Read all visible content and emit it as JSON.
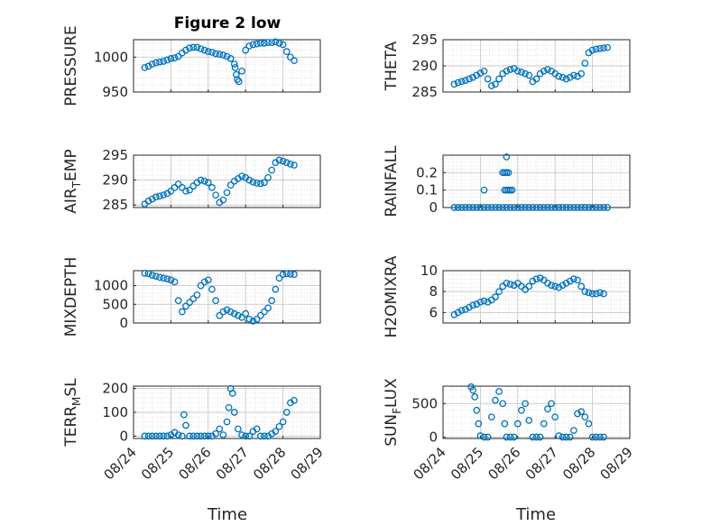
{
  "figure_title": "Figure 2 low",
  "chart_data": [
    {
      "type": "scatter",
      "ylabel": "PRESSURE",
      "ylim": [
        950,
        1025
      ],
      "yticks": [
        950,
        1000
      ],
      "xlim": [
        0,
        5
      ],
      "x": [
        0.3,
        0.4,
        0.5,
        0.6,
        0.7,
        0.8,
        0.9,
        1.0,
        1.1,
        1.2,
        1.3,
        1.4,
        1.5,
        1.6,
        1.7,
        1.8,
        1.9,
        2.0,
        2.1,
        2.2,
        2.3,
        2.4,
        2.5,
        2.6,
        2.7,
        2.72,
        2.75,
        2.78,
        2.82,
        2.9,
        3.0,
        3.1,
        3.2,
        3.3,
        3.4,
        3.5,
        3.6,
        3.7,
        3.8,
        3.9,
        4.0,
        4.1,
        4.2,
        4.3
      ],
      "y": [
        985,
        987,
        990,
        992,
        993,
        994,
        996,
        998,
        999,
        1001,
        1006,
        1010,
        1013,
        1014,
        1014,
        1012,
        1010,
        1008,
        1007,
        1005,
        1004,
        1003,
        1001,
        998,
        990,
        985,
        975,
        968,
        965,
        980,
        1010,
        1016,
        1018,
        1019,
        1020,
        1020,
        1021,
        1021,
        1022,
        1020,
        1018,
        1008,
        1000,
        995
      ]
    },
    {
      "type": "scatter",
      "ylabel": "THETA",
      "ylim": [
        285,
        295
      ],
      "yticks": [
        285,
        290,
        295
      ],
      "xlim": [
        0,
        5
      ],
      "x": [
        0.3,
        0.4,
        0.5,
        0.6,
        0.7,
        0.8,
        0.9,
        1.0,
        1.1,
        1.2,
        1.3,
        1.4,
        1.5,
        1.6,
        1.7,
        1.8,
        1.9,
        2.0,
        2.1,
        2.2,
        2.3,
        2.4,
        2.5,
        2.6,
        2.7,
        2.8,
        2.9,
        3.0,
        3.1,
        3.2,
        3.3,
        3.4,
        3.5,
        3.6,
        3.7,
        3.8,
        3.9,
        4.0,
        4.1,
        4.2,
        4.3,
        4.4
      ],
      "y": [
        286.5,
        286.8,
        287.0,
        287.2,
        287.5,
        287.8,
        288.2,
        288.6,
        289.0,
        287.5,
        286.2,
        286.5,
        287.5,
        288.5,
        289.0,
        289.3,
        289.5,
        289.0,
        288.8,
        288.5,
        288.2,
        287.0,
        287.5,
        288.5,
        289.0,
        289.3,
        289.0,
        288.5,
        288.0,
        287.8,
        287.5,
        287.8,
        288.2,
        288.0,
        288.5,
        290.5,
        292.5,
        293.0,
        293.2,
        293.3,
        293.4,
        293.5
      ]
    },
    {
      "type": "scatter",
      "ylabel": "AIR_TEMP",
      "ylim": [
        284.5,
        295
      ],
      "yticks": [
        285,
        290,
        295
      ],
      "xlim": [
        0,
        5
      ],
      "x": [
        0.3,
        0.4,
        0.5,
        0.6,
        0.7,
        0.8,
        0.9,
        1.0,
        1.1,
        1.2,
        1.3,
        1.4,
        1.5,
        1.6,
        1.7,
        1.8,
        1.9,
        2.0,
        2.1,
        2.2,
        2.3,
        2.4,
        2.5,
        2.6,
        2.7,
        2.8,
        2.9,
        3.0,
        3.1,
        3.2,
        3.3,
        3.4,
        3.5,
        3.6,
        3.7,
        3.8,
        3.9,
        4.0,
        4.1,
        4.2,
        4.3
      ],
      "y": [
        285.2,
        285.8,
        286.2,
        286.6,
        286.8,
        287.0,
        287.3,
        287.8,
        288.5,
        289.2,
        288.5,
        287.8,
        288.0,
        288.8,
        289.5,
        290.0,
        289.8,
        289.5,
        288.5,
        287.0,
        285.5,
        286.0,
        287.5,
        289.0,
        289.8,
        290.3,
        290.8,
        290.5,
        290.0,
        289.6,
        289.4,
        289.3,
        289.5,
        290.5,
        292.0,
        293.5,
        294.0,
        293.8,
        293.5,
        293.2,
        293.0
      ]
    },
    {
      "type": "scatter",
      "ylabel": "RAINFALL",
      "ylim": [
        0,
        0.3
      ],
      "yticks": [
        0,
        0.1,
        0.2
      ],
      "xlim": [
        0,
        5
      ],
      "x": [
        0.3,
        0.4,
        0.5,
        0.6,
        0.7,
        0.8,
        0.9,
        1.0,
        1.1,
        1.2,
        1.3,
        1.4,
        1.5,
        1.6,
        1.7,
        1.8,
        1.9,
        2.0,
        2.1,
        2.2,
        2.3,
        2.4,
        2.5,
        2.6,
        2.7,
        2.8,
        2.9,
        3.0,
        3.1,
        3.2,
        3.3,
        3.4,
        3.5,
        3.6,
        3.7,
        3.8,
        3.9,
        4.0,
        4.1,
        4.2,
        4.3,
        4.4,
        1.1,
        1.6,
        1.65,
        1.65,
        1.7,
        1.7,
        1.75,
        1.75,
        1.8,
        1.85,
        1.7
      ],
      "y": [
        0,
        0,
        0,
        0,
        0,
        0,
        0,
        0,
        0,
        0,
        0,
        0,
        0,
        0,
        0,
        0,
        0,
        0,
        0,
        0,
        0,
        0,
        0,
        0,
        0,
        0,
        0,
        0,
        0,
        0,
        0,
        0,
        0,
        0,
        0,
        0,
        0,
        0,
        0,
        0,
        0,
        0,
        0.1,
        0.2,
        0.1,
        0.2,
        0.1,
        0.2,
        0.1,
        0.2,
        0.1,
        0.1,
        0.29
      ]
    },
    {
      "type": "scatter",
      "ylabel": "MIXDEPTH",
      "ylim": [
        0,
        1400
      ],
      "yticks": [
        0,
        500,
        1000
      ],
      "xlim": [
        0,
        5
      ],
      "x": [
        0.3,
        0.4,
        0.5,
        0.6,
        0.7,
        0.8,
        0.9,
        1.0,
        1.1,
        1.2,
        1.3,
        1.4,
        1.5,
        1.6,
        1.7,
        1.8,
        1.9,
        2.0,
        2.1,
        2.2,
        2.3,
        2.4,
        2.5,
        2.6,
        2.7,
        2.8,
        2.9,
        3.0,
        3.1,
        3.2,
        3.3,
        3.4,
        3.5,
        3.6,
        3.7,
        3.8,
        3.9,
        4.0,
        4.1,
        4.2,
        4.3
      ],
      "y": [
        1330,
        1320,
        1280,
        1250,
        1220,
        1200,
        1180,
        1150,
        1100,
        600,
        300,
        450,
        550,
        650,
        750,
        1000,
        1100,
        1150,
        900,
        600,
        200,
        300,
        350,
        300,
        250,
        200,
        150,
        250,
        100,
        50,
        100,
        200,
        300,
        400,
        600,
        900,
        1200,
        1300,
        1320,
        1310,
        1300
      ]
    },
    {
      "type": "scatter",
      "ylabel": "H2OMIXRA",
      "ylim": [
        5,
        10
      ],
      "yticks": [
        6,
        8,
        10
      ],
      "xlim": [
        0,
        5
      ],
      "x": [
        0.3,
        0.4,
        0.5,
        0.6,
        0.7,
        0.8,
        0.9,
        1.0,
        1.1,
        1.2,
        1.3,
        1.4,
        1.5,
        1.6,
        1.7,
        1.8,
        1.9,
        2.0,
        2.1,
        2.2,
        2.3,
        2.4,
        2.5,
        2.6,
        2.7,
        2.8,
        2.9,
        3.0,
        3.1,
        3.2,
        3.3,
        3.4,
        3.5,
        3.6,
        3.7,
        3.8,
        3.9,
        4.0,
        4.1,
        4.2,
        4.3
      ],
      "y": [
        5.8,
        6.0,
        6.2,
        6.3,
        6.5,
        6.7,
        6.8,
        7.0,
        7.1,
        7.0,
        7.2,
        7.5,
        8.0,
        8.5,
        8.8,
        8.7,
        8.6,
        8.8,
        8.5,
        8.2,
        8.5,
        9.0,
        9.2,
        9.3,
        9.1,
        8.8,
        8.6,
        8.5,
        8.4,
        8.6,
        8.8,
        9.0,
        9.2,
        9.1,
        8.5,
        8.0,
        7.9,
        7.8,
        7.8,
        7.9,
        7.8
      ]
    },
    {
      "type": "scatter",
      "ylabel": "TERR_MSL",
      "ylim": [
        -10,
        210
      ],
      "yticks": [
        0,
        100,
        200
      ],
      "xlim": [
        0,
        5
      ],
      "x": [
        0.3,
        0.4,
        0.5,
        0.6,
        0.7,
        0.8,
        0.9,
        1.0,
        1.1,
        1.2,
        1.3,
        1.35,
        1.4,
        1.5,
        1.6,
        1.7,
        1.8,
        1.9,
        2.0,
        2.1,
        2.2,
        2.3,
        2.4,
        2.5,
        2.55,
        2.6,
        2.65,
        2.7,
        2.8,
        2.9,
        3.0,
        3.1,
        3.2,
        3.3,
        3.4,
        3.5,
        3.6,
        3.7,
        3.8,
        3.9,
        4.0,
        4.1,
        4.2,
        4.3
      ],
      "y": [
        0,
        0,
        0,
        0,
        0,
        0,
        0,
        5,
        15,
        5,
        0,
        90,
        45,
        0,
        0,
        0,
        0,
        0,
        0,
        0,
        10,
        30,
        5,
        60,
        120,
        200,
        180,
        100,
        30,
        5,
        0,
        0,
        20,
        30,
        0,
        0,
        0,
        10,
        20,
        40,
        60,
        100,
        140,
        150
      ]
    },
    {
      "type": "scatter",
      "ylabel": "SUN_FLUX",
      "ylim": [
        -20,
        760
      ],
      "yticks": [
        0,
        500
      ],
      "xlim": [
        0,
        5
      ],
      "x": [
        0.75,
        0.8,
        0.85,
        0.9,
        0.95,
        1.0,
        1.1,
        1.2,
        1.3,
        1.4,
        1.5,
        1.6,
        1.65,
        1.7,
        1.8,
        1.9,
        2.0,
        2.1,
        2.2,
        2.3,
        2.4,
        2.5,
        2.6,
        2.7,
        2.8,
        2.9,
        3.0,
        3.1,
        3.2,
        3.3,
        3.4,
        3.5,
        3.6,
        3.7,
        3.8,
        3.9,
        4.0,
        4.1,
        4.2,
        4.3
      ],
      "y": [
        750,
        700,
        600,
        400,
        200,
        20,
        0,
        0,
        300,
        550,
        680,
        500,
        200,
        0,
        0,
        0,
        200,
        400,
        500,
        250,
        0,
        0,
        0,
        200,
        420,
        500,
        300,
        20,
        0,
        0,
        0,
        100,
        350,
        380,
        300,
        200,
        0,
        0,
        0,
        0
      ]
    }
  ],
  "x_tick_labels": [
    "08/24",
    "08/25",
    "08/26",
    "08/27",
    "08/28",
    "08/29"
  ],
  "xlabel_left": "Time",
  "xlabel_right": "Time"
}
